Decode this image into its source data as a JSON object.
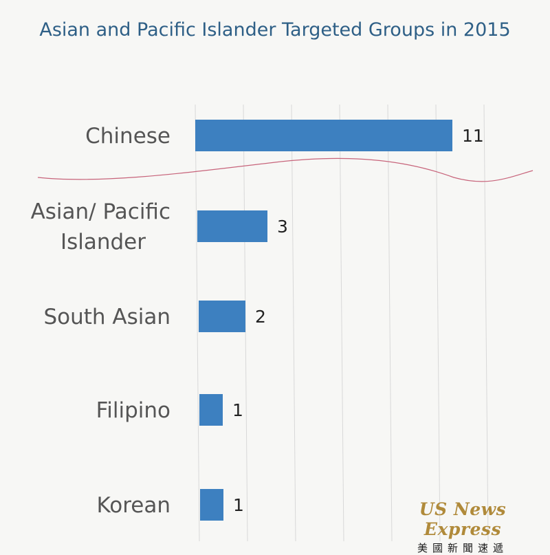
{
  "chart_data": {
    "type": "bar",
    "orientation": "horizontal",
    "title": "Asian and Pacific Islander Targeted Groups in 2015",
    "categories": [
      "Chinese",
      "Asian/ Pacific Islander",
      "South Asian",
      "Filipino",
      "Korean"
    ],
    "category_lines": [
      [
        "Chinese"
      ],
      [
        "Asian/ Pacific",
        "Islander"
      ],
      [
        "South Asian"
      ],
      [
        "Filipino"
      ],
      [
        "Korean"
      ]
    ],
    "values": [
      11,
      3,
      2,
      1,
      1
    ],
    "data_labels": [
      "11",
      "3",
      "2",
      "1",
      "1"
    ],
    "xlabel": "",
    "ylabel": "",
    "xlim": [
      0,
      12
    ],
    "axis_break": "after Chinese",
    "grid": true,
    "legend": "none",
    "bar_color": "#3d80c0"
  },
  "watermark": {
    "name_en": "US News Express",
    "name_zh": "美國新聞速遞"
  }
}
